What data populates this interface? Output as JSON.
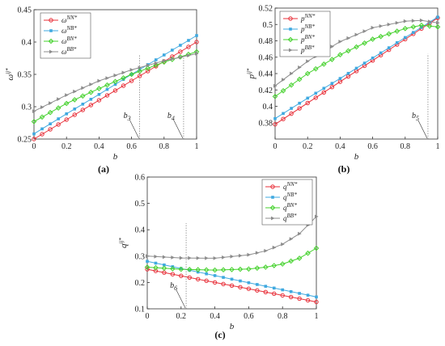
{
  "colors": {
    "NN": "#e8303a",
    "NB": "#3fa9e0",
    "BN": "#44d12c",
    "BB": "#8c8c8c"
  },
  "chart_data": [
    {
      "type": "line",
      "panel_label": "(a)",
      "xlabel": "b",
      "ylabel": "ω",
      "ylabel_sup": "ij*",
      "xlim": [
        0,
        1
      ],
      "ylim": [
        0.25,
        0.45
      ],
      "xticks": [
        "0",
        "0.2",
        "0.4",
        "0.6",
        "0.8",
        "1"
      ],
      "yticks": [
        "0.25",
        "0.3",
        "0.35",
        "0.4",
        "0.45"
      ],
      "legend_position": "top-left",
      "series": [
        {
          "name": "ω",
          "sup": "NN*",
          "key": "NN",
          "marker": "circle",
          "x": [
            0,
            0.2,
            0.4,
            0.6,
            0.8,
            1
          ],
          "y": [
            0.25,
            0.28,
            0.31,
            0.34,
            0.37,
            0.4
          ]
        },
        {
          "name": "ω",
          "sup": "NB*",
          "key": "NB",
          "marker": "square",
          "x": [
            0,
            0.2,
            0.4,
            0.6,
            0.8,
            1
          ],
          "y": [
            0.258,
            0.289,
            0.319,
            0.35,
            0.38,
            0.41
          ]
        },
        {
          "name": "ω",
          "sup": "BN*",
          "key": "BN",
          "marker": "diamond",
          "x": [
            0,
            0.2,
            0.4,
            0.6,
            0.8,
            1
          ],
          "y": [
            0.277,
            0.305,
            0.328,
            0.35,
            0.369,
            0.385
          ]
        },
        {
          "name": "ω",
          "sup": "BB*",
          "key": "BB",
          "marker": "triangle",
          "x": [
            0,
            0.2,
            0.4,
            0.6,
            0.8,
            1
          ],
          "y": [
            0.293,
            0.318,
            0.34,
            0.357,
            0.371,
            0.382
          ]
        }
      ],
      "annotations": [
        {
          "text": "b",
          "sub": "3",
          "x": 0.65
        },
        {
          "text": "b",
          "sub": "4",
          "x": 0.92
        }
      ]
    },
    {
      "type": "line",
      "panel_label": "(b)",
      "xlabel": "b",
      "ylabel": "p",
      "ylabel_sup": "ij*",
      "xlim": [
        0,
        1
      ],
      "ylim": [
        0.36,
        0.52
      ],
      "xticks": [
        "0",
        "0.2",
        "0.4",
        "0.6",
        "0.8",
        "1"
      ],
      "yticks": [
        "0.38",
        "0.4",
        "0.42",
        "0.44",
        "0.46",
        "0.48",
        "0.5",
        "0.52"
      ],
      "legend_position": "top-left",
      "series": [
        {
          "name": "p",
          "sup": "NN*",
          "key": "NN",
          "marker": "circle",
          "x": [
            0,
            0.2,
            0.4,
            0.6,
            0.8,
            1
          ],
          "y": [
            0.378,
            0.404,
            0.43,
            0.456,
            0.482,
            0.508
          ]
        },
        {
          "name": "p",
          "sup": "NB*",
          "key": "NB",
          "marker": "square",
          "x": [
            0,
            0.2,
            0.4,
            0.6,
            0.8,
            1
          ],
          "y": [
            0.385,
            0.41,
            0.434,
            0.459,
            0.484,
            0.509
          ]
        },
        {
          "name": "p",
          "sup": "BN*",
          "key": "BN",
          "marker": "diamond",
          "x": [
            0,
            0.2,
            0.4,
            0.6,
            0.8,
            0.9,
            1
          ],
          "y": [
            0.412,
            0.44,
            0.463,
            0.482,
            0.495,
            0.499,
            0.497
          ]
        },
        {
          "name": "p",
          "sup": "BB*",
          "key": "BB",
          "marker": "triangle",
          "x": [
            0,
            0.2,
            0.4,
            0.6,
            0.8,
            0.9,
            1
          ],
          "y": [
            0.425,
            0.455,
            0.479,
            0.496,
            0.504,
            0.505,
            0.502
          ]
        }
      ],
      "annotations": [
        {
          "text": "b",
          "sub": "5",
          "x": 0.94
        }
      ]
    },
    {
      "type": "line",
      "panel_label": "(c)",
      "xlabel": "b",
      "ylabel": "q",
      "ylabel_sup": "ij*",
      "xlim": [
        0,
        1
      ],
      "ylim": [
        0.1,
        0.6
      ],
      "xticks": [
        "0",
        "0.2",
        "0.4",
        "0.6",
        "0.8",
        "1"
      ],
      "yticks": [
        "0.1",
        "0.2",
        "0.3",
        "0.4",
        "0.5",
        "0.6"
      ],
      "legend_position": "top-right",
      "series": [
        {
          "name": "q",
          "sup": "NN*",
          "key": "NN",
          "marker": "circle",
          "x": [
            0,
            0.2,
            0.4,
            0.6,
            0.8,
            1
          ],
          "y": [
            0.25,
            0.225,
            0.2,
            0.176,
            0.151,
            0.126
          ]
        },
        {
          "name": "q",
          "sup": "NB*",
          "key": "NB",
          "marker": "square",
          "x": [
            0,
            0.2,
            0.4,
            0.6,
            0.8,
            1
          ],
          "y": [
            0.28,
            0.253,
            0.226,
            0.199,
            0.172,
            0.145
          ]
        },
        {
          "name": "q",
          "sup": "BN*",
          "key": "BN",
          "marker": "diamond",
          "x": [
            0,
            0.2,
            0.4,
            0.6,
            0.7,
            0.8,
            0.9,
            1
          ],
          "y": [
            0.258,
            0.25,
            0.247,
            0.251,
            0.258,
            0.27,
            0.292,
            0.33
          ]
        },
        {
          "name": "q",
          "sup": "BB*",
          "key": "BB",
          "marker": "triangle",
          "x": [
            0,
            0.2,
            0.4,
            0.6,
            0.7,
            0.8,
            0.9,
            1
          ],
          "y": [
            0.3,
            0.293,
            0.292,
            0.305,
            0.32,
            0.345,
            0.385,
            0.45
          ]
        }
      ],
      "annotations": [
        {
          "text": "b",
          "sub": "6",
          "x": 0.23
        }
      ]
    }
  ]
}
